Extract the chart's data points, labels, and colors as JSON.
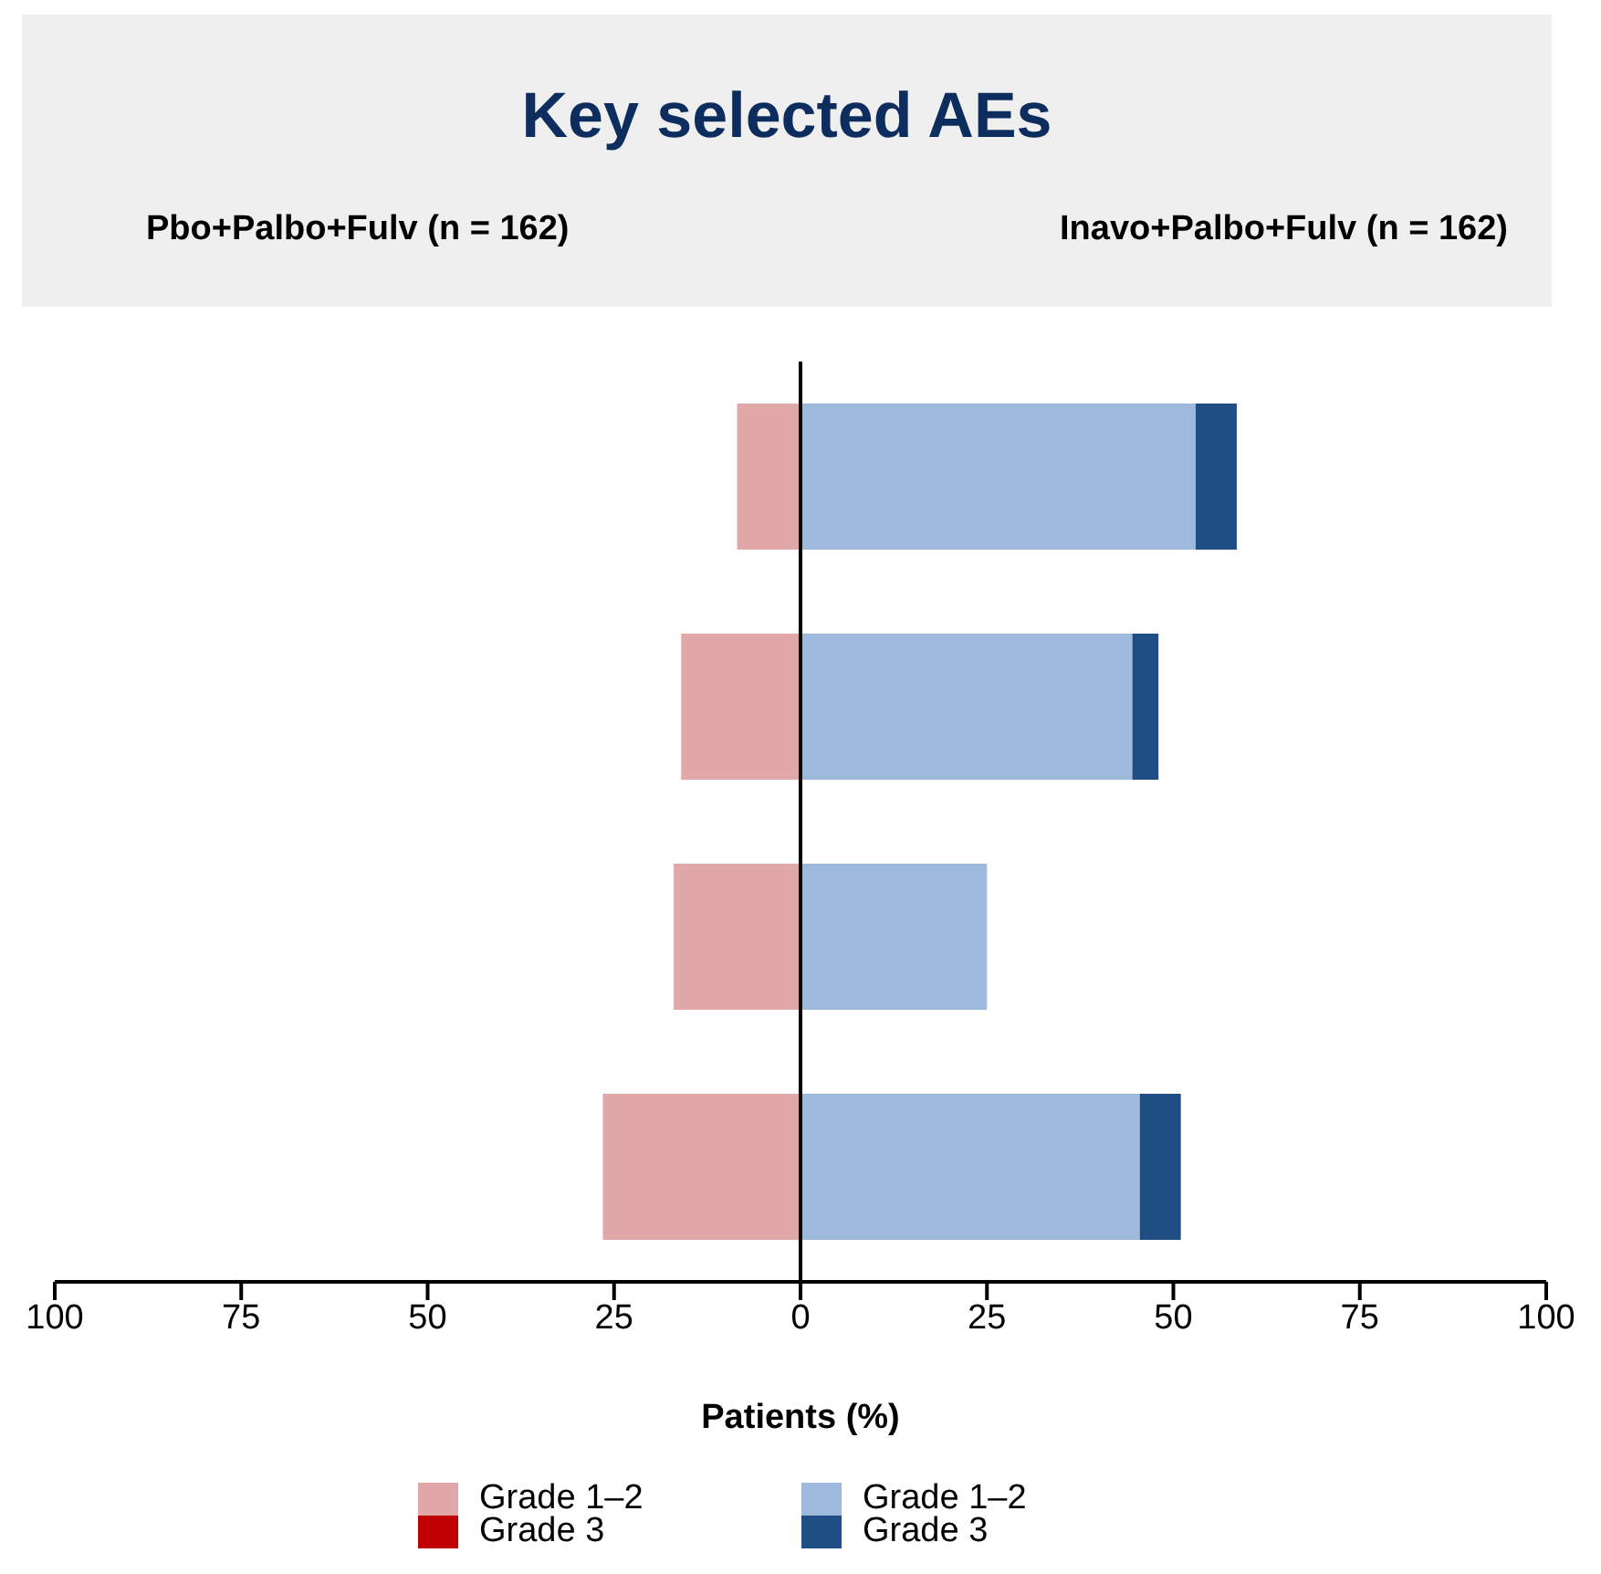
{
  "chart_data": {
    "type": "bar",
    "orientation": "horizontal",
    "stacked": true,
    "title": "Key selected AEs",
    "annotations": [
      "Pbo+Palbo+Fulv (n = 162)",
      "Inavo+Palbo+Fulv (n = 162)"
    ],
    "xlabel": "Patients (%)",
    "categories": [
      null,
      null,
      null,
      null
    ],
    "series": [
      {
        "name": "Grade 1–2",
        "color": "#e0a8a8",
        "values": [
          -8.5,
          -16,
          -17,
          -26.5
        ]
      },
      {
        "name": "Grade 3",
        "color": "#c00000",
        "values": [
          0,
          0,
          0,
          0
        ]
      },
      {
        "name": "Grade 1–2",
        "color": "#9db9dc",
        "values": [
          53,
          44.5,
          25,
          45.5
        ]
      },
      {
        "name": "Grade 3",
        "color": "#1f4e85",
        "values": [
          5.5,
          3.5,
          0,
          5.5
        ]
      }
    ],
    "xlim": [
      -100,
      100
    ],
    "xticks": [
      {
        "value": -100,
        "label": "100"
      },
      {
        "value": -75,
        "label": "75"
      },
      {
        "value": -50,
        "label": "50"
      },
      {
        "value": -25,
        "label": "25"
      },
      0,
      25,
      50,
      75,
      100
    ],
    "ref_lines": [
      {
        "axis": "x",
        "value": 0,
        "color": "#000000"
      }
    ],
    "grid": false,
    "legend": "bottom"
  }
}
